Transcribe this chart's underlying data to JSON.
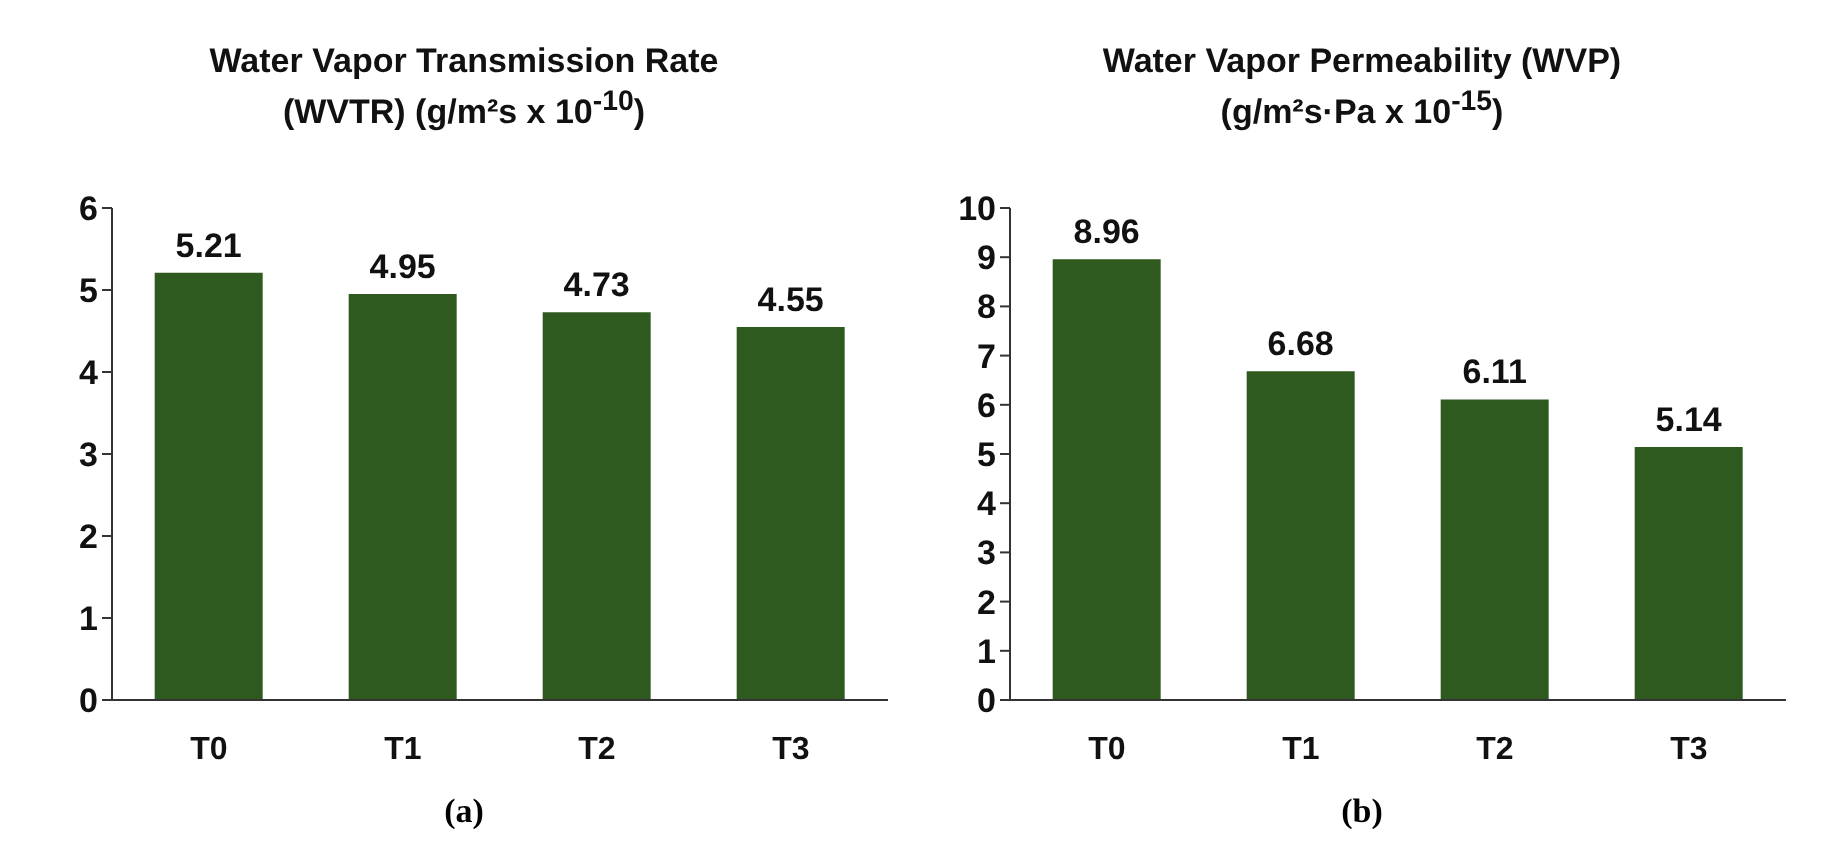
{
  "chart_data": [
    {
      "type": "bar",
      "title": "Water Vapor Transmission Rate (WVTR) (g/m²s x 10$^{-10}$)",
      "categories": [
        "T0",
        "T1",
        "T2",
        "T3"
      ],
      "values": [
        5.21,
        4.95,
        4.73,
        4.55
      ],
      "color": "#2f5a1f",
      "ylim": [
        0,
        6
      ],
      "yticks": [
        0,
        1,
        2,
        3,
        4,
        5,
        6
      ],
      "data_labels": true,
      "grid": false,
      "legend": false,
      "annotations": [
        "(a)"
      ]
    },
    {
      "type": "bar",
      "title": "Water Vapor Permeability (WVP) (g/m²s·Pa x 10$^{-15}$)",
      "categories": [
        "T0",
        "T1",
        "T2",
        "T3"
      ],
      "values": [
        8.96,
        6.68,
        6.11,
        5.14
      ],
      "color": "#2f5a1f",
      "ylim": [
        0,
        10
      ],
      "yticks": [
        0,
        1,
        2,
        3,
        4,
        5,
        6,
        7,
        8,
        9,
        10
      ],
      "data_labels": true,
      "grid": false,
      "legend": false,
      "annotations": [
        "(b)"
      ]
    }
  ]
}
